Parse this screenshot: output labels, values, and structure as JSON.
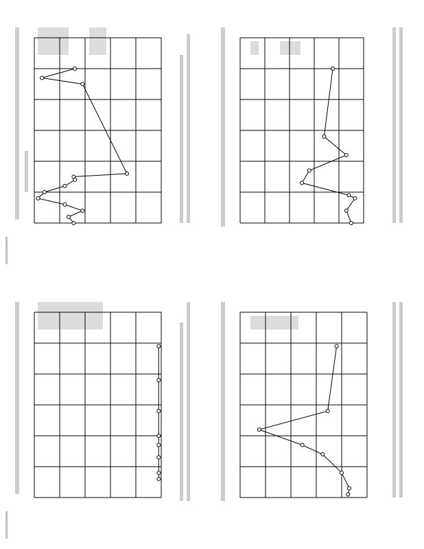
{
  "chart_data": [
    {
      "type": "line",
      "color": "#000000",
      "grid": true,
      "x": [
        0,
        2,
        4,
        6,
        8,
        10,
        12,
        14,
        15,
        16,
        45,
        47,
        50
      ],
      "values": [
        69,
        73,
        62,
        76,
        97,
        92,
        76,
        68,
        69,
        27,
        62,
        94,
        68
      ],
      "xlim": [
        0,
        60
      ],
      "xticks": [
        0,
        10,
        20,
        30,
        40,
        50,
        60
      ],
      "ylim": [
        0,
        100
      ],
      "yticks": [
        0,
        20,
        40,
        60,
        80,
        100
      ]
    },
    {
      "type": "line",
      "color": "#000000",
      "grid": true,
      "x": [
        0,
        4,
        8,
        9,
        13,
        17,
        22,
        28,
        50
      ],
      "values": [
        10,
        14,
        7,
        12,
        50,
        44,
        14,
        32,
        25
      ],
      "xlim": [
        0,
        60
      ],
      "xticks": [
        0,
        10,
        20,
        30,
        40,
        50,
        60
      ],
      "ylim": [
        0,
        100
      ],
      "yticks": [
        0,
        20,
        40,
        60,
        80,
        100
      ]
    },
    {
      "type": "line",
      "color": "#000000",
      "grid": true,
      "x": [
        6,
        8,
        13,
        17,
        20,
        28,
        38,
        49
      ],
      "values": [
        2,
        2,
        2,
        2,
        2,
        2,
        2,
        2
      ],
      "xlim": [
        0,
        60
      ],
      "xticks": [
        0,
        10,
        20,
        30,
        40,
        50,
        60
      ],
      "ylim": [
        0,
        100
      ],
      "yticks": [
        0,
        20,
        40,
        60,
        80,
        100
      ]
    },
    {
      "type": "line",
      "color": "#000000",
      "grid": true,
      "x": [
        1,
        3,
        8,
        14,
        17,
        22,
        28,
        49
      ],
      "values": [
        15,
        14,
        20,
        35,
        51,
        85,
        31,
        24
      ],
      "xlim": [
        0,
        60
      ],
      "xticks": [
        0,
        10,
        20,
        30,
        40,
        50,
        60
      ],
      "ylim": [
        0,
        100
      ],
      "yticks": [
        0,
        20,
        40,
        60,
        80,
        100
      ]
    }
  ]
}
